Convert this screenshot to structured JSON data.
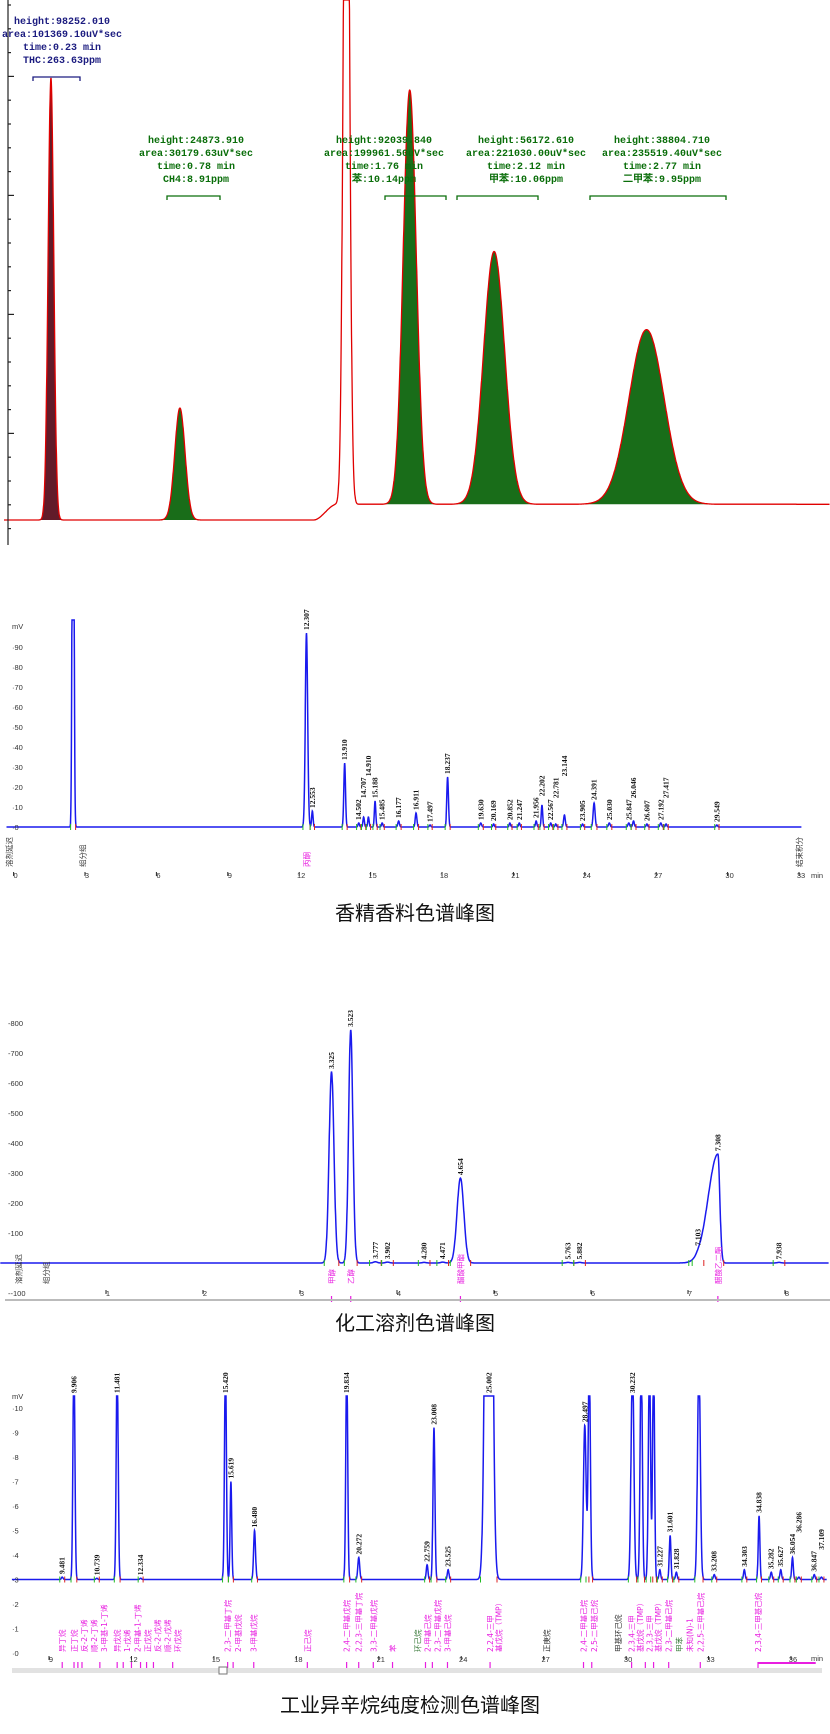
{
  "titles": {
    "chart2": "香精香料色谱峰图",
    "chart3": "化工溶剂色谱峰图",
    "chart4": "工业异辛烷纯度检测色谱峰图"
  },
  "colors": {
    "trace_red": "#e00000",
    "trace_blue": "#1a1aee",
    "peak_fill_green": "#0d650d",
    "peak_fill_darkred": "#5a0f1e",
    "annotation_navy": "#1c1c80",
    "annotation_green": "#0a6e0a",
    "label_pink": "#e81ee0",
    "start_marker": "#22bb22",
    "end_marker": "#dd2222"
  },
  "chart_data": [
    {
      "type": "line",
      "title": "",
      "xlabel": "",
      "ylabel": "",
      "x_unit": "min",
      "baseline_shift": {
        "from": 1.35,
        "to": 1.45,
        "value": 3500
      },
      "peaks": [
        {
          "time": 0.23,
          "height": 98252.01,
          "sigma": 0.012,
          "fill": "#5a0f1e",
          "annotation": [
            "height:98252.010",
            "area:101369.10uV*sec",
            "time:0.23 min",
            "THC:263.63ppm"
          ],
          "annotation_color": "#1c1c80"
        },
        {
          "time": 0.78,
          "height": 24873.91,
          "sigma": 0.022,
          "fill": "#0d650d",
          "annotation": [
            "height:24873.910",
            "area:30179.63uV*sec",
            "time:0.78 min",
            "CH4:8.91ppm"
          ],
          "annotation_color": "#0a6e0a"
        },
        {
          "time": 1.49,
          "height": 200000,
          "sigma": 0.012,
          "fill": "",
          "annotation": [],
          "annotation_color": ""
        },
        {
          "time": 1.76,
          "height": 92039.84,
          "sigma": 0.028,
          "fill": "#0d650d",
          "annotation": [
            "height:92039.840",
            "area:199961.50uV*sec",
            "time:1.76 min",
            "苯:10.14ppm"
          ],
          "annotation_color": "#0a6e0a"
        },
        {
          "time": 2.12,
          "height": 56172.61,
          "sigma": 0.045,
          "fill": "#0d650d",
          "annotation": [
            "height:56172.610",
            "area:221030.00uV*sec",
            "time:2.12 min",
            "甲苯:10.06ppm"
          ],
          "annotation_color": "#0a6e0a"
        },
        {
          "time": 2.77,
          "height": 38804.71,
          "sigma": 0.075,
          "fill": "#0d650d",
          "annotation": [
            "height:38804.710",
            "area:235519.40uV*sec",
            "time:2.77 min",
            "二甲苯:9.95ppm"
          ],
          "annotation_color": "#0a6e0a"
        }
      ]
    },
    {
      "type": "line",
      "title": "香精香料色谱峰图",
      "xlabel": "min",
      "ylabel": "mV",
      "xticks": [
        0,
        3,
        6,
        9,
        12,
        15,
        18,
        21,
        24,
        27,
        30,
        33
      ],
      "yticks": [
        0,
        10,
        20,
        30,
        40,
        50,
        60,
        70,
        80,
        90
      ],
      "ylim": [
        0,
        100
      ],
      "peaks": [
        {
          "time": 2.5,
          "height": 300,
          "sigma": 0.035,
          "label": ""
        },
        {
          "time": 12.307,
          "height": 97,
          "sigma": 0.05,
          "label": "12.307"
        },
        {
          "time": 12.553,
          "height": 8,
          "sigma": 0.03,
          "label": "12.553"
        },
        {
          "time": 13.91,
          "height": 32,
          "sigma": 0.035,
          "label": "13.910"
        },
        {
          "time": 14.502,
          "height": 2,
          "sigma": 0.03,
          "label": "14.502"
        },
        {
          "time": 14.707,
          "height": 5,
          "sigma": 0.03,
          "label": "14.707"
        },
        {
          "time": 14.91,
          "height": 5,
          "sigma": 0.03,
          "label": "14.910"
        },
        {
          "time": 15.188,
          "height": 13,
          "sigma": 0.03,
          "label": "15.188"
        },
        {
          "time": 15.485,
          "height": 2,
          "sigma": 0.03,
          "label": "15.485"
        },
        {
          "time": 16.177,
          "height": 3,
          "sigma": 0.035,
          "label": "16.177"
        },
        {
          "time": 16.911,
          "height": 7,
          "sigma": 0.035,
          "label": "16.911"
        },
        {
          "time": 17.497,
          "height": 1,
          "sigma": 0.03,
          "label": "17.497"
        },
        {
          "time": 18.237,
          "height": 25,
          "sigma": 0.035,
          "label": "18.237"
        },
        {
          "time": 19.63,
          "height": 2,
          "sigma": 0.035,
          "label": "19.630"
        },
        {
          "time": 20.169,
          "height": 1.5,
          "sigma": 0.03,
          "label": "20.169"
        },
        {
          "time": 20.852,
          "height": 2,
          "sigma": 0.03,
          "label": "20.852"
        },
        {
          "time": 21.247,
          "height": 2,
          "sigma": 0.03,
          "label": "21.247"
        },
        {
          "time": 21.956,
          "height": 3,
          "sigma": 0.03,
          "label": "21.956"
        },
        {
          "time": 22.202,
          "height": 11,
          "sigma": 0.03,
          "label": "22.202"
        },
        {
          "time": 22.567,
          "height": 2,
          "sigma": 0.03,
          "label": "22.567"
        },
        {
          "time": 22.781,
          "height": 1.5,
          "sigma": 0.03,
          "label": "22.781"
        },
        {
          "time": 23.144,
          "height": 6,
          "sigma": 0.035,
          "label": "23.144"
        },
        {
          "time": 23.905,
          "height": 1.5,
          "sigma": 0.03,
          "label": "23.905"
        },
        {
          "time": 24.391,
          "height": 12,
          "sigma": 0.04,
          "label": "24.391"
        },
        {
          "time": 25.03,
          "height": 2,
          "sigma": 0.035,
          "label": "25.030"
        },
        {
          "time": 25.847,
          "height": 2,
          "sigma": 0.035,
          "label": "25.847"
        },
        {
          "time": 26.046,
          "height": 3,
          "sigma": 0.035,
          "label": "26.046"
        },
        {
          "time": 26.607,
          "height": 1.5,
          "sigma": 0.03,
          "label": "26.607"
        },
        {
          "time": 27.192,
          "height": 2,
          "sigma": 0.035,
          "label": "27.192"
        },
        {
          "time": 27.417,
          "height": 1.5,
          "sigma": 0.03,
          "label": "27.417"
        },
        {
          "time": 29.549,
          "height": 1,
          "sigma": 0.03,
          "label": "29.549"
        }
      ],
      "events": [
        {
          "time": -0.2,
          "text": "溶剂延迟",
          "color": "#333333"
        },
        {
          "time": 2.9,
          "text": "组分组",
          "color": "#333333"
        },
        {
          "time": 12.3,
          "text": "丙酮",
          "color": "#e81ee0"
        },
        {
          "time": 33.0,
          "text": "结束积分",
          "color": "#333333"
        }
      ]
    },
    {
      "type": "line",
      "title": "化工溶剂色谱峰图",
      "xlabel": "",
      "ylabel": "",
      "xticks": [
        1,
        2,
        3,
        4,
        5,
        6,
        7,
        8
      ],
      "yticks": [
        -100,
        100,
        200,
        300,
        400,
        500,
        600,
        700,
        800
      ],
      "ylim": [
        -100,
        800
      ],
      "peaks": [
        {
          "time": 3.325,
          "height": 637,
          "sigma": 0.025,
          "label": "3.325"
        },
        {
          "time": 3.523,
          "height": 777,
          "sigma": 0.022,
          "label": "3.523"
        },
        {
          "time": 3.777,
          "height": 4,
          "sigma": 0.02,
          "label": "3.777"
        },
        {
          "time": 3.902,
          "height": 3,
          "sigma": 0.02,
          "label": "3.902"
        },
        {
          "time": 4.28,
          "height": 2,
          "sigma": 0.02,
          "label": "4.280"
        },
        {
          "time": 4.471,
          "height": 3,
          "sigma": 0.02,
          "label": "4.471"
        },
        {
          "time": 4.654,
          "height": 283,
          "sigma": 0.035,
          "label": "4.654"
        },
        {
          "time": 5.763,
          "height": 2,
          "sigma": 0.02,
          "label": "5.763"
        },
        {
          "time": 5.882,
          "height": 2,
          "sigma": 0.02,
          "label": "5.882"
        },
        {
          "time": 7.103,
          "height": 3,
          "sigma": 0.02,
          "label": "7.103"
        },
        {
          "time": 7.308,
          "height": 363,
          "sigma": 0.04,
          "sigma_left": 0.1,
          "sigma_right": 0.02,
          "label": "7.308"
        },
        {
          "time": 7.938,
          "height": 2,
          "sigma": 0.02,
          "label": "7.938"
        }
      ],
      "events": [
        {
          "time": 0.1,
          "text": "溶剂延迟",
          "color": "#333333"
        },
        {
          "time": 0.38,
          "text": "组分组",
          "color": "#333333"
        },
        {
          "time": 3.325,
          "text": "甲醇",
          "color": "#e81ee0"
        },
        {
          "time": 3.523,
          "text": "乙醇",
          "color": "#e81ee0"
        },
        {
          "time": 4.654,
          "text": "醋酸甲酯",
          "color": "#e81ee0"
        },
        {
          "time": 7.308,
          "text": "醋酸乙二酯",
          "color": "#e81ee0"
        }
      ]
    },
    {
      "type": "line",
      "title": "工业异辛烷纯度检测色谱峰图",
      "xlabel": "min",
      "ylabel": "mV",
      "xticks": [
        9,
        12,
        15,
        18,
        21,
        24,
        27,
        30,
        33,
        36
      ],
      "yticks": [
        0,
        1,
        2,
        3,
        4,
        5,
        6,
        7,
        8,
        9,
        10
      ],
      "ylim": [
        0,
        10
      ],
      "baseline": 3,
      "peaks": [
        {
          "time": 9.481,
          "height": 3.1,
          "sigma": 0.03,
          "label": "9.481"
        },
        {
          "time": 9.906,
          "height": 12,
          "sigma": 0.035,
          "label": "9.906"
        },
        {
          "time": 10.739,
          "height": 3.05,
          "sigma": 0.03,
          "label": "10.739"
        },
        {
          "time": 11.481,
          "height": 12,
          "sigma": 0.035,
          "label": "11.481"
        },
        {
          "time": 12.334,
          "height": 3.05,
          "sigma": 0.03,
          "label": "12.334"
        },
        {
          "time": 15.42,
          "height": 12,
          "sigma": 0.035,
          "label": "15.420"
        },
        {
          "time": 15.619,
          "height": 7.0,
          "sigma": 0.03,
          "label": "15.619"
        },
        {
          "time": 16.48,
          "height": 5.0,
          "sigma": 0.035,
          "label": "16.480"
        },
        {
          "time": 19.834,
          "height": 12,
          "sigma": 0.035,
          "label": "19.834"
        },
        {
          "time": 20.272,
          "height": 3.9,
          "sigma": 0.035,
          "label": "20.272"
        },
        {
          "time": 22.759,
          "height": 3.6,
          "sigma": 0.03,
          "label": "22.759"
        },
        {
          "time": 23.008,
          "height": 9.2,
          "sigma": 0.035,
          "label": "23.008"
        },
        {
          "time": 23.525,
          "height": 3.4,
          "sigma": 0.03,
          "label": "23.525"
        },
        {
          "time": 25.002,
          "height": 40,
          "sigma": 0.1,
          "label": "25.002"
        },
        {
          "time": 28.497,
          "height": 9.3,
          "sigma": 0.05,
          "label": "28.497"
        },
        {
          "time": 28.66,
          "height": 12,
          "sigma": 0.04,
          "label": ""
        },
        {
          "time": 30.232,
          "height": 12,
          "sigma": 0.05,
          "label": "30.232"
        },
        {
          "time": 30.55,
          "height": 12,
          "sigma": 0.04,
          "label": ""
        },
        {
          "time": 30.85,
          "height": 12,
          "sigma": 0.04,
          "label": ""
        },
        {
          "time": 31.0,
          "height": 12,
          "sigma": 0.035,
          "label": ""
        },
        {
          "time": 31.227,
          "height": 3.4,
          "sigma": 0.03,
          "label": "31.227"
        },
        {
          "time": 31.601,
          "height": 4.8,
          "sigma": 0.03,
          "label": "31.601"
        },
        {
          "time": 31.828,
          "height": 3.3,
          "sigma": 0.03,
          "label": "31.828"
        },
        {
          "time": 32.65,
          "height": 12,
          "sigma": 0.05,
          "label": ""
        },
        {
          "time": 33.208,
          "height": 3.2,
          "sigma": 0.03,
          "label": "33.208"
        },
        {
          "time": 34.303,
          "height": 3.4,
          "sigma": 0.03,
          "label": "34.303"
        },
        {
          "time": 34.838,
          "height": 5.6,
          "sigma": 0.03,
          "label": "34.838"
        },
        {
          "time": 35.282,
          "height": 3.3,
          "sigma": 0.03,
          "label": "35.282"
        },
        {
          "time": 35.627,
          "height": 3.4,
          "sigma": 0.03,
          "label": "35.627"
        },
        {
          "time": 36.054,
          "height": 3.9,
          "sigma": 0.03,
          "label": "36.054"
        },
        {
          "time": 36.286,
          "height": 3.1,
          "sigma": 0.03,
          "label": "36.286"
        },
        {
          "time": 36.847,
          "height": 3.2,
          "sigma": 0.03,
          "label": "36.847"
        },
        {
          "time": 37.109,
          "height": 3.1,
          "sigma": 0.03,
          "label": "37.109"
        }
      ],
      "events": [
        {
          "time": 9.48,
          "text": "异丁烷",
          "color": "#e81ee0"
        },
        {
          "time": 9.91,
          "text": "正丁烷",
          "color": "#e81ee0"
        },
        {
          "time": 10.05,
          "text": "反-2-丁烯",
          "color": "#e81ee0"
        },
        {
          "time": 10.2,
          "text": "顺-2-丁烯",
          "color": "#e81ee0"
        },
        {
          "time": 10.85,
          "text": "3-甲基-1-丁烯",
          "color": "#e81ee0"
        },
        {
          "time": 11.48,
          "text": "异戊烷",
          "color": "#e81ee0"
        },
        {
          "time": 11.7,
          "text": "1-戊烯",
          "color": "#e81ee0"
        },
        {
          "time": 12.0,
          "text": "2-甲基-1-丁烯",
          "color": "#e81ee0"
        },
        {
          "time": 12.33,
          "text": "正戊烷",
          "color": "#e81ee0"
        },
        {
          "time": 12.55,
          "text": "反-2-戊烯",
          "color": "#e81ee0"
        },
        {
          "time": 12.8,
          "text": "顺-2-戊烯",
          "color": "#e81ee0"
        },
        {
          "time": 13.5,
          "text": "环戊烷",
          "color": "#e81ee0"
        },
        {
          "time": 15.5,
          "text": "2,3-二甲基丁烷",
          "color": "#e81ee0"
        },
        {
          "time": 15.7,
          "text": "2-甲基戊烷",
          "color": "#e81ee0"
        },
        {
          "time": 16.45,
          "text": "3-甲基戊烷",
          "color": "#e81ee0"
        },
        {
          "time": 18.4,
          "text": "正己烷",
          "color": "#e81ee0"
        },
        {
          "time": 19.83,
          "text": "2,4-二甲基戊烷",
          "color": "#e81ee0"
        },
        {
          "time": 20.27,
          "text": "2,2,3-三甲基丁烷",
          "color": "#e81ee0"
        },
        {
          "time": 20.8,
          "text": "3,3-二甲基戊烷",
          "color": "#e81ee0"
        },
        {
          "time": 21.5,
          "text": "苯",
          "color": "#e81ee0"
        },
        {
          "time": 22.4,
          "text": "环己烷",
          "color": "#3a7a3a"
        },
        {
          "time": 22.7,
          "text": "2-甲基己烷",
          "color": "#e81ee0"
        },
        {
          "time": 22.95,
          "text": "2,3-二甲基戊烷",
          "color": "#e81ee0"
        },
        {
          "time": 23.5,
          "text": "3-甲基己烷",
          "color": "#e81ee0"
        },
        {
          "time": 25.05,
          "text": "2,2,4-三甲基戊烷（TMP）",
          "color": "#e81ee0"
        },
        {
          "time": 27.1,
          "text": "正庚烷",
          "color": "#333333"
        },
        {
          "time": 28.45,
          "text": "2,4-二甲基己烷",
          "color": "#e81ee0"
        },
        {
          "time": 28.75,
          "text": "2,5-二甲基己烷",
          "color": "#e81ee0"
        },
        {
          "time": 29.7,
          "text": "甲基环己烷",
          "color": "#333333"
        },
        {
          "time": 30.2,
          "text": "2,3,4-三甲基戊烷（TMP）",
          "color": "#e81ee0"
        },
        {
          "time": 30.7,
          "text": "2,3,3-三甲基戊烷（TMP）",
          "color": "#e81ee0"
        },
        {
          "time": 31.0,
          "text": "2,3-二甲基己烷",
          "color": "#e81ee0"
        },
        {
          "time": 31.2,
          "text": "甲苯",
          "color": "#3a7a3a"
        },
        {
          "time": 31.55,
          "text": "未知(N)-1",
          "color": "#e81ee0"
        },
        {
          "time": 32.7,
          "text": "2,2,5-三甲基己烷",
          "color": "#e81ee0"
        },
        {
          "time": 34.8,
          "text": "2,3,4-三甲基己烷",
          "color": "#e81ee0"
        }
      ]
    }
  ]
}
